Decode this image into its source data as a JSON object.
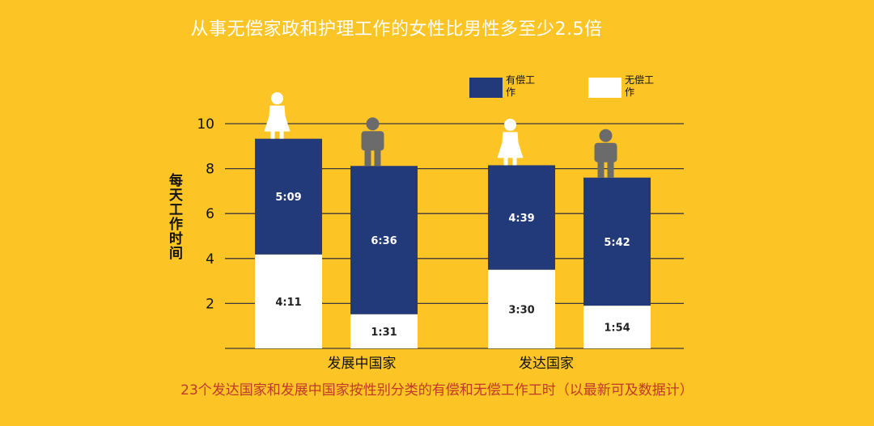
{
  "title": "从事无偿家政和护理工作的女性比男性多至少2.5倍",
  "footnote": "23个发达国家和发展中国家按性别分类的有偿和无偿工作工时（以最新可及数据计）",
  "colors": {
    "background": "#FDC425",
    "paid": "#233A7A",
    "unpaid": "#FFFFFF",
    "woman_icon": "#FFFFFF",
    "man_icon": "#6B6B6B",
    "grid": "#3a3a3a",
    "footnote": "#C0392B"
  },
  "legend": {
    "paid_label": "有偿工作",
    "unpaid_label": "无偿工作"
  },
  "chart_data": {
    "type": "bar",
    "stacked": true,
    "title": "从事无偿家政和护理工作的女性比男性多至少2.5倍",
    "ylabel": "每天工作时间",
    "ylim": [
      0,
      10
    ],
    "yticks": [
      2,
      4,
      6,
      8,
      10
    ],
    "grid": true,
    "legend_position": "top-right",
    "groups": [
      "发展中国家",
      "发达国家"
    ],
    "bars": [
      {
        "group": "发展中国家",
        "gender": "女性",
        "icon": "woman-icon",
        "unpaid": 4.18,
        "paid": 5.15,
        "unpaid_label": "4:11",
        "paid_label": "5:09"
      },
      {
        "group": "发展中国家",
        "gender": "男性",
        "icon": "man-icon",
        "unpaid": 1.52,
        "paid": 6.6,
        "unpaid_label": "1:31",
        "paid_label": "6:36"
      },
      {
        "group": "发达国家",
        "gender": "女性",
        "icon": "woman-icon",
        "unpaid": 3.5,
        "paid": 4.65,
        "unpaid_label": "3:30",
        "paid_label": "4:39"
      },
      {
        "group": "发达国家",
        "gender": "男性",
        "icon": "man-icon",
        "unpaid": 1.9,
        "paid": 5.7,
        "unpaid_label": "1:54",
        "paid_label": "5:42"
      }
    ]
  }
}
